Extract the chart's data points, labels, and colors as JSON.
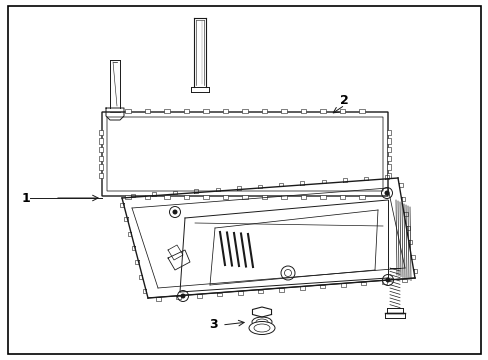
{
  "background_color": "#ffffff",
  "line_color": "#1a1a1a",
  "border_color": "#000000",
  "label_1": "1",
  "label_2": "2",
  "label_3": "3",
  "lw_main": 1.0,
  "lw_thin": 0.6,
  "lw_border": 1.2
}
